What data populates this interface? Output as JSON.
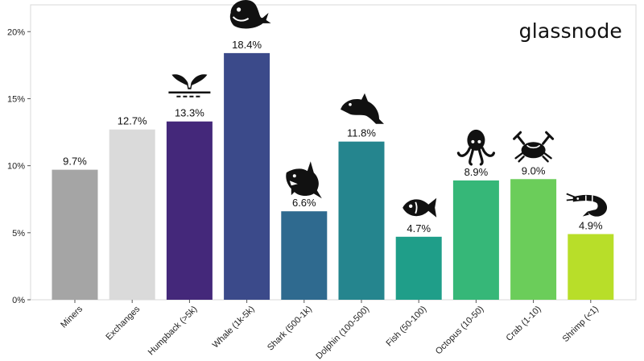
{
  "brand": {
    "logo_text": "glassnode"
  },
  "chart_data": {
    "type": "bar",
    "categories": [
      "Miners",
      "Exchanges",
      "Humpback (>5k)",
      "Whale (1k-5k)",
      "Shark (500-1k)",
      "Dolphin (100-500)",
      "Fish (50-100)",
      "Octopus (10-50)",
      "Crab (1-10)",
      "Shrimp (<1)"
    ],
    "values": [
      9.7,
      12.7,
      13.3,
      18.4,
      6.6,
      11.8,
      4.7,
      8.9,
      9.0,
      4.9
    ],
    "value_labels": [
      "9.7%",
      "12.7%",
      "13.3%",
      "18.4%",
      "6.6%",
      "11.8%",
      "4.7%",
      "8.9%",
      "9.0%",
      "4.9%"
    ],
    "colors": [
      "#a5a5a5",
      "#dadada",
      "#44287a",
      "#3b4a8a",
      "#2f6a8f",
      "#25858e",
      "#1f9e89",
      "#36b778",
      "#6bcd5a",
      "#b8de29"
    ],
    "icons": [
      "",
      "",
      "humpback-tail-icon",
      "whale-icon",
      "shark-icon",
      "dolphin-icon",
      "fish-icon",
      "octopus-icon",
      "crab-icon",
      "shrimp-icon"
    ],
    "ylim": [
      0,
      22
    ],
    "yticks": [
      0,
      5,
      10,
      15,
      20
    ],
    "ytick_labels": [
      "0%",
      "5%",
      "10%",
      "15%",
      "20%"
    ],
    "grid": false,
    "title": "",
    "xlabel": "",
    "ylabel": ""
  }
}
